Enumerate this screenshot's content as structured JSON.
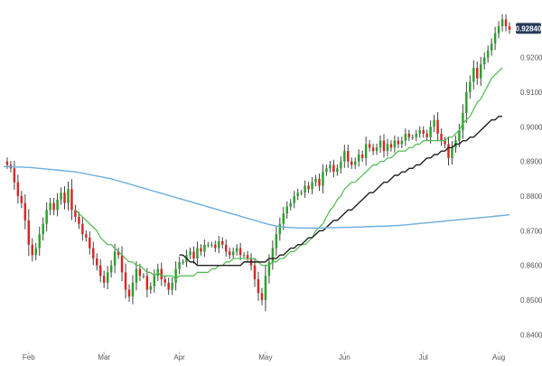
{
  "chart_data": {
    "type": "candlestick",
    "title": "",
    "xlabel": "",
    "ylabel": "",
    "ylim": [
      0.8375,
      0.9345
    ],
    "y_ticks": [
      "0.92000",
      "0.91000",
      "0.90000",
      "0.89000",
      "0.88000",
      "0.87000",
      "0.86000",
      "0.85000",
      "0.84000"
    ],
    "y_tick_values": [
      0.92,
      0.91,
      0.9,
      0.89,
      0.88,
      0.87,
      0.86,
      0.85,
      0.84
    ],
    "x_ticks": [
      "Feb",
      "Mar",
      "Apr",
      "May",
      "Jun",
      "Jul",
      "Aug"
    ],
    "x_tick_index": [
      7,
      28,
      49,
      73,
      95,
      117,
      138
    ],
    "last_price_label": "0.92840",
    "last_price": 0.9284,
    "grid": false,
    "colors": {
      "up": "#2ca02c",
      "down": "#d62728",
      "wick": "#444444",
      "ma_fast": "#4cbb4c",
      "ma_mid": "#222222",
      "ma_slow": "#6aaee0",
      "axis_text": "#555555",
      "price_tag_bg": "#263a5a",
      "price_tag_text": "#ffffff"
    },
    "closes": [
      0.89,
      0.889,
      0.888,
      0.884,
      0.88,
      0.878,
      0.873,
      0.866,
      0.863,
      0.865,
      0.869,
      0.872,
      0.876,
      0.878,
      0.876,
      0.879,
      0.881,
      0.878,
      0.882,
      0.876,
      0.874,
      0.872,
      0.869,
      0.868,
      0.865,
      0.862,
      0.86,
      0.857,
      0.855,
      0.858,
      0.86,
      0.864,
      0.863,
      0.858,
      0.853,
      0.851,
      0.855,
      0.859,
      0.857,
      0.857,
      0.853,
      0.854,
      0.857,
      0.859,
      0.856,
      0.855,
      0.853,
      0.855,
      0.859,
      0.861,
      0.861,
      0.863,
      0.864,
      0.862,
      0.865,
      0.864,
      0.866,
      0.866,
      0.866,
      0.865,
      0.867,
      0.866,
      0.864,
      0.863,
      0.864,
      0.865,
      0.863,
      0.863,
      0.862,
      0.86,
      0.856,
      0.852,
      0.85,
      0.857,
      0.861,
      0.865,
      0.869,
      0.872,
      0.875,
      0.877,
      0.878,
      0.88,
      0.881,
      0.881,
      0.883,
      0.882,
      0.884,
      0.885,
      0.883,
      0.887,
      0.888,
      0.889,
      0.887,
      0.888,
      0.89,
      0.893,
      0.89,
      0.889,
      0.89,
      0.892,
      0.891,
      0.895,
      0.894,
      0.893,
      0.894,
      0.896,
      0.893,
      0.895,
      0.894,
      0.896,
      0.895,
      0.896,
      0.898,
      0.897,
      0.897,
      0.898,
      0.899,
      0.898,
      0.897,
      0.9,
      0.902,
      0.898,
      0.896,
      0.895,
      0.891,
      0.894,
      0.896,
      0.899,
      0.904,
      0.91,
      0.913,
      0.917,
      0.914,
      0.918,
      0.92,
      0.922,
      0.924,
      0.927,
      0.929,
      0.931,
      0.929,
      0.928
    ],
    "series": [
      {
        "values": [
          null,
          null,
          null,
          null,
          null,
          null,
          null,
          null,
          null,
          null,
          null,
          null,
          null,
          null,
          null,
          null,
          null,
          null,
          null,
          null,
          0.876,
          0.875,
          0.874,
          0.873,
          0.872,
          0.871,
          0.87,
          0.868,
          0.867,
          0.866,
          0.866,
          0.865,
          0.864,
          0.863,
          0.862,
          0.861,
          0.861,
          0.86,
          0.86,
          0.859,
          0.858,
          0.858,
          0.857,
          0.858,
          0.857,
          0.857,
          0.857,
          0.857,
          0.856,
          0.857,
          0.857,
          0.857,
          0.857,
          0.857,
          0.858,
          0.858,
          0.858,
          0.858,
          0.859,
          0.859,
          0.86,
          0.86,
          0.861,
          0.861,
          0.862,
          0.862,
          0.862,
          0.862,
          0.862,
          0.862,
          0.862,
          0.861,
          0.86,
          0.86,
          0.86,
          0.861,
          0.861,
          0.862,
          0.862,
          0.863,
          0.864,
          0.864,
          0.865,
          0.866,
          0.866,
          0.867,
          0.868,
          0.87,
          0.871,
          0.872,
          0.874,
          0.876,
          0.877,
          0.879,
          0.88,
          0.882,
          0.883,
          0.884,
          0.884,
          0.885,
          0.886,
          0.887,
          0.888,
          0.889,
          0.889,
          0.89,
          0.89,
          0.891,
          0.891,
          0.892,
          0.893,
          0.893,
          0.893,
          0.894,
          0.894,
          0.895,
          0.895,
          0.896,
          0.896,
          0.896,
          0.896,
          0.896,
          0.896,
          0.896,
          0.897,
          0.897,
          0.898,
          0.899,
          0.901,
          0.902,
          0.903,
          0.905,
          0.907,
          0.908,
          0.91,
          0.912,
          0.914,
          0.915,
          0.916,
          0.917
        ]
      },
      {
        "values": [
          null,
          null,
          null,
          null,
          null,
          null,
          null,
          null,
          null,
          null,
          null,
          null,
          null,
          null,
          null,
          null,
          null,
          null,
          null,
          null,
          null,
          null,
          null,
          null,
          null,
          null,
          null,
          null,
          null,
          null,
          null,
          null,
          null,
          null,
          null,
          null,
          null,
          null,
          null,
          null,
          null,
          null,
          null,
          null,
          null,
          null,
          null,
          null,
          null,
          0.863,
          0.863,
          0.862,
          0.861,
          0.861,
          0.86,
          0.86,
          0.86,
          0.86,
          0.86,
          0.86,
          0.86,
          0.86,
          0.86,
          0.86,
          0.86,
          0.86,
          0.86,
          0.861,
          0.861,
          0.861,
          0.861,
          0.861,
          0.861,
          0.861,
          0.862,
          0.862,
          0.862,
          0.863,
          0.863,
          0.864,
          0.865,
          0.865,
          0.866,
          0.866,
          0.867,
          0.868,
          0.868,
          0.869,
          0.87,
          0.87,
          0.871,
          0.872,
          0.873,
          0.873,
          0.874,
          0.875,
          0.876,
          0.876,
          0.877,
          0.878,
          0.879,
          0.88,
          0.881,
          0.881,
          0.882,
          0.883,
          0.884,
          0.884,
          0.885,
          0.886,
          0.886,
          0.887,
          0.887,
          0.888,
          0.888,
          0.889,
          0.889,
          0.89,
          0.891,
          0.891,
          0.892,
          0.892,
          0.893,
          0.893,
          0.894,
          0.894,
          0.895,
          0.895,
          0.896,
          0.896,
          0.897,
          0.897,
          0.898,
          0.899,
          0.9,
          0.901,
          0.902,
          0.902,
          0.903,
          0.903
        ]
      },
      {
        "values": [
          0.8885,
          0.8885,
          0.8885,
          0.8884,
          0.8884,
          0.8884,
          0.8883,
          0.8883,
          0.8882,
          0.8881,
          0.888,
          0.8879,
          0.8878,
          0.8877,
          0.8876,
          0.8875,
          0.8874,
          0.8873,
          0.8872,
          0.8871,
          0.887,
          0.8868,
          0.8866,
          0.8864,
          0.8862,
          0.886,
          0.8858,
          0.8856,
          0.8854,
          0.8852,
          0.885,
          0.8847,
          0.8844,
          0.8841,
          0.8838,
          0.8835,
          0.8832,
          0.8829,
          0.8826,
          0.8823,
          0.882,
          0.8817,
          0.8814,
          0.8811,
          0.8808,
          0.8805,
          0.8802,
          0.8799,
          0.8796,
          0.8793,
          0.879,
          0.8787,
          0.8784,
          0.8781,
          0.8778,
          0.8775,
          0.8772,
          0.8769,
          0.8766,
          0.8763,
          0.876,
          0.8757,
          0.8754,
          0.8751,
          0.8748,
          0.8745,
          0.8742,
          0.8739,
          0.8736,
          0.8733,
          0.873,
          0.8727,
          0.8724,
          0.8721,
          0.8718,
          0.8716,
          0.8714,
          0.8712,
          0.8711,
          0.871,
          0.8709,
          0.8709,
          0.8708,
          0.8708,
          0.8708,
          0.8708,
          0.8708,
          0.8708,
          0.8708,
          0.8708,
          0.8709,
          0.8709,
          0.8709,
          0.8709,
          0.871,
          0.871,
          0.871,
          0.871,
          0.8711,
          0.8711,
          0.8711,
          0.8712,
          0.8712,
          0.8712,
          0.8713,
          0.8713,
          0.8713,
          0.8714,
          0.8714,
          0.8715,
          0.8715,
          0.8716,
          0.8717,
          0.8718,
          0.8719,
          0.872,
          0.8721,
          0.8722,
          0.8723,
          0.8724,
          0.8725,
          0.8726,
          0.8727,
          0.8728,
          0.8729,
          0.873,
          0.8731,
          0.8732,
          0.8733,
          0.8734,
          0.8735,
          0.8736,
          0.8737,
          0.8738,
          0.8739,
          0.874,
          0.8741,
          0.8742,
          0.8743,
          0.8744,
          0.8745,
          0.8746
        ]
      }
    ]
  }
}
